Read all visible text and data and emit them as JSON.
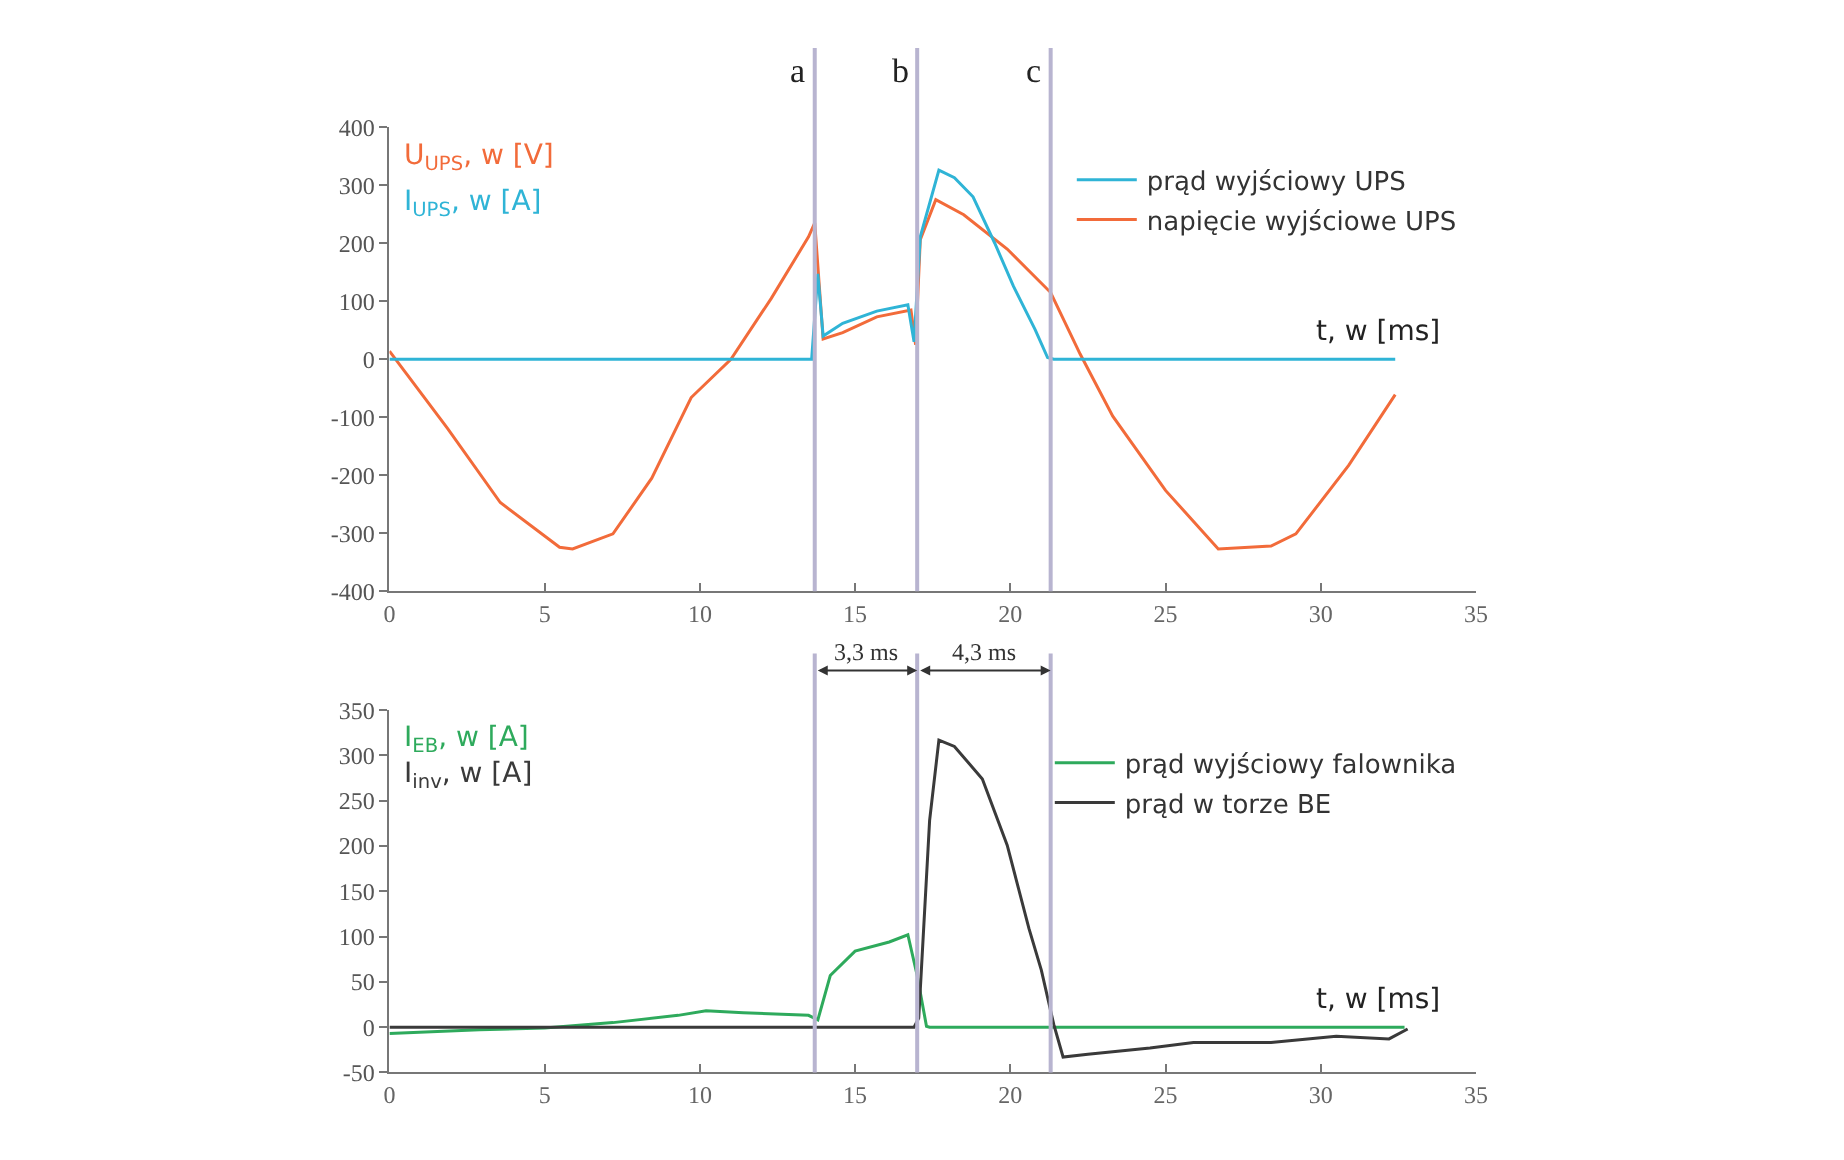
{
  "chart_data": [
    {
      "type": "line",
      "xlabel": "t, w [ms]",
      "ylabel": "U$_{UPS}$, w [V]\nI$_{UPS}$, w [A]",
      "xlim": [
        0,
        35
      ],
      "xticks": [
        0,
        5,
        10,
        15,
        20,
        25,
        30,
        35
      ],
      "ylim": [
        -400,
        400
      ],
      "yticks": [
        -400,
        -300,
        -200,
        -100,
        0,
        100,
        200,
        300,
        400
      ],
      "legend": "top right",
      "marker": "none",
      "line_style": "solid",
      "ref_lines": [
        {
          "axis": "x",
          "value": 13.7,
          "label": "a",
          "color": "#b8b4d0"
        },
        {
          "axis": "x",
          "value": 17.0,
          "label": "b",
          "color": "#b8b4d0"
        },
        {
          "axis": "x",
          "value": 21.3,
          "label": "c",
          "color": "#b8b4d0"
        }
      ],
      "series": [
        {
          "name": "napięcie wyjściowe UPS",
          "color": "#f26b3a",
          "x": [
            0,
            1.87,
            3.57,
            5.48,
            5.9,
            7.2,
            8.45,
            9.72,
            11.0,
            12.3,
            13.5,
            13.7,
            13.97,
            14.6,
            15.7,
            16.8,
            16.95,
            17.1,
            17.6,
            18.5,
            19.9,
            21.3,
            22.25,
            23.3,
            25.0,
            26.7,
            28.4,
            29.2,
            30.9,
            32.4
          ],
          "values": [
            14,
            -119,
            -247,
            -324,
            -327,
            -301,
            -205,
            -66,
            0,
            105,
            211,
            235,
            35,
            46,
            73,
            85,
            25,
            206,
            275,
            249,
            190,
            115,
            9,
            -98,
            -226,
            -327,
            -322,
            -301,
            -183,
            -61
          ]
        },
        {
          "name": "prąd wyjściowy UPS",
          "color": "#2fb4d6",
          "x": [
            0,
            13.6,
            13.8,
            13.97,
            14.6,
            15.7,
            16.7,
            16.9,
            17.1,
            17.7,
            18.2,
            18.8,
            19.5,
            20.1,
            20.8,
            21.2,
            21.4,
            32.4
          ],
          "values": [
            0,
            0,
            147,
            40,
            62,
            83,
            94,
            30,
            211,
            326,
            313,
            280,
            200,
            126,
            51,
            3,
            0,
            0
          ]
        }
      ]
    },
    {
      "type": "line",
      "xlabel": "t, w [ms]",
      "ylabel": "I$_{EB}$, w [A]\nI$_{inv}$, w [A]",
      "xlim": [
        0,
        35
      ],
      "xticks": [
        0,
        5,
        10,
        15,
        20,
        25,
        30,
        35
      ],
      "ylim": [
        -50,
        350
      ],
      "yticks": [
        -50,
        0,
        50,
        100,
        150,
        200,
        250,
        300,
        350
      ],
      "legend": "top right",
      "marker": "none",
      "line_style": "solid",
      "ref_lines": [
        {
          "axis": "x",
          "value": 13.7,
          "color": "#b8b4d0"
        },
        {
          "axis": "x",
          "value": 17.0,
          "color": "#b8b4d0"
        },
        {
          "axis": "x",
          "value": 21.3,
          "color": "#b8b4d0"
        }
      ],
      "annotations": [
        "3,3 ms",
        "4,3 ms"
      ],
      "series": [
        {
          "name": "prąd wyjściowy falownika",
          "color": "#2eaa5c",
          "x": [
            0,
            2.9,
            5,
            7.2,
            9.3,
            10.2,
            11.4,
            13.5,
            13.8,
            14.2,
            15.0,
            16.1,
            16.7,
            17.0,
            17.3,
            17.4,
            32.7
          ],
          "values": [
            -7,
            -3,
            -1,
            5,
            13,
            18,
            16,
            13,
            8,
            57,
            84,
            94,
            102,
            57,
            1,
            0,
            0
          ]
        },
        {
          "name": "prąd w torze BE",
          "color": "#3a3a3a",
          "x": [
            0,
            16.9,
            17.05,
            17.4,
            17.7,
            18.2,
            19.1,
            19.9,
            20.6,
            21.0,
            21.4,
            21.7,
            22.5,
            24.5,
            25.9,
            28.4,
            30.5,
            32.2,
            32.8
          ],
          "values": [
            0,
            0,
            10,
            228,
            317,
            310,
            274,
            201,
            109,
            63,
            3,
            -33,
            -30,
            -23,
            -17,
            -17,
            -10,
            -13,
            -2
          ]
        }
      ]
    }
  ]
}
